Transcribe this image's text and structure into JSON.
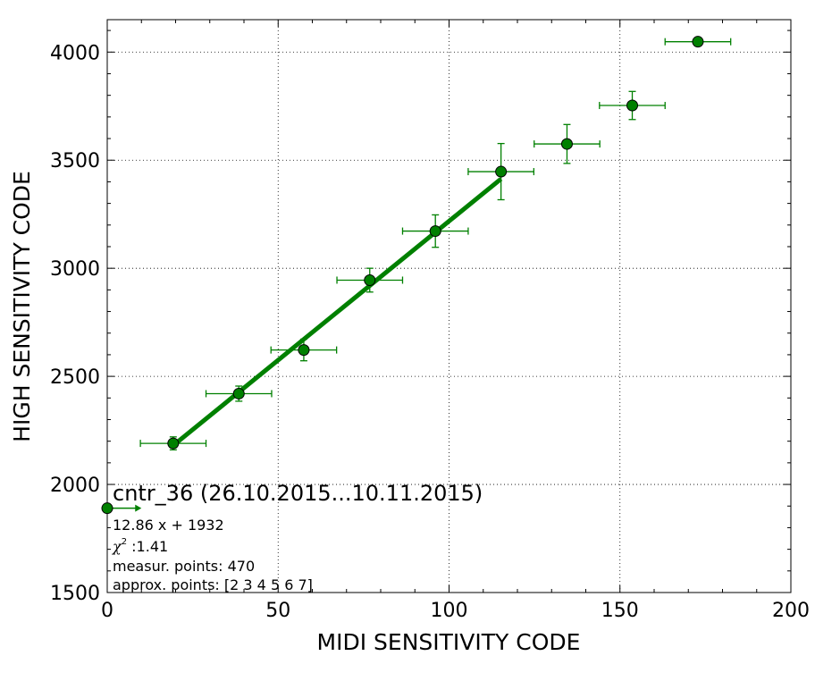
{
  "chart_data": {
    "type": "scatter",
    "xlabel": "MIDI SENSITIVITY CODE",
    "ylabel": "HIGH SENSITIVITY CODE",
    "xlim": [
      0,
      200
    ],
    "ylim": [
      1500,
      4150
    ],
    "x_ticks": [
      "0",
      "50",
      "100",
      "150",
      "200"
    ],
    "y_ticks": [
      "1500",
      "2000",
      "2500",
      "3000",
      "3500",
      "4000"
    ],
    "x_tick_values": [
      0,
      50,
      100,
      150,
      200
    ],
    "y_tick_values": [
      1500,
      2000,
      2500,
      3000,
      3500,
      4000
    ],
    "grid": true,
    "grid_style": "dotted",
    "marker_color": "#008000",
    "fit_color": "#008000",
    "points": [
      {
        "x": 19.3,
        "y": 2190,
        "xerr": 9.6,
        "yerr": 30
      },
      {
        "x": 38.5,
        "y": 2420,
        "xerr": 9.6,
        "yerr": 35
      },
      {
        "x": 57.5,
        "y": 2622,
        "xerr": 9.6,
        "yerr": 50
      },
      {
        "x": 76.8,
        "y": 2945,
        "xerr": 9.6,
        "yerr": 55
      },
      {
        "x": 96.0,
        "y": 3172,
        "xerr": 9.6,
        "yerr": 75
      },
      {
        "x": 115.2,
        "y": 3447,
        "xerr": 9.6,
        "yerr": 130
      },
      {
        "x": 134.5,
        "y": 3575,
        "xerr": 9.6,
        "yerr": 90
      },
      {
        "x": 153.6,
        "y": 3753,
        "xerr": 9.6,
        "yerr": 65
      },
      {
        "x": 172.8,
        "y": 4048,
        "xerr": 9.6,
        "yerr": 0
      }
    ],
    "fit": {
      "slope": 12.86,
      "intercept": 1932,
      "x_range": [
        19.3,
        115.2
      ]
    },
    "legend": {
      "series_label": "cntr_36 (26.10.2015...10.11.2015)",
      "equation": "12.86 x + 1932",
      "chi2_symbol": "χ",
      "chi2_exp": "2",
      "chi2_value": " :1.41",
      "measur_points": "measur. points: 470",
      "approx_points": "approx. points: [2 3 4 5 6 7]",
      "marker_point": {
        "x": 0,
        "y": 1890
      },
      "marker_arrow_to": 10
    }
  }
}
